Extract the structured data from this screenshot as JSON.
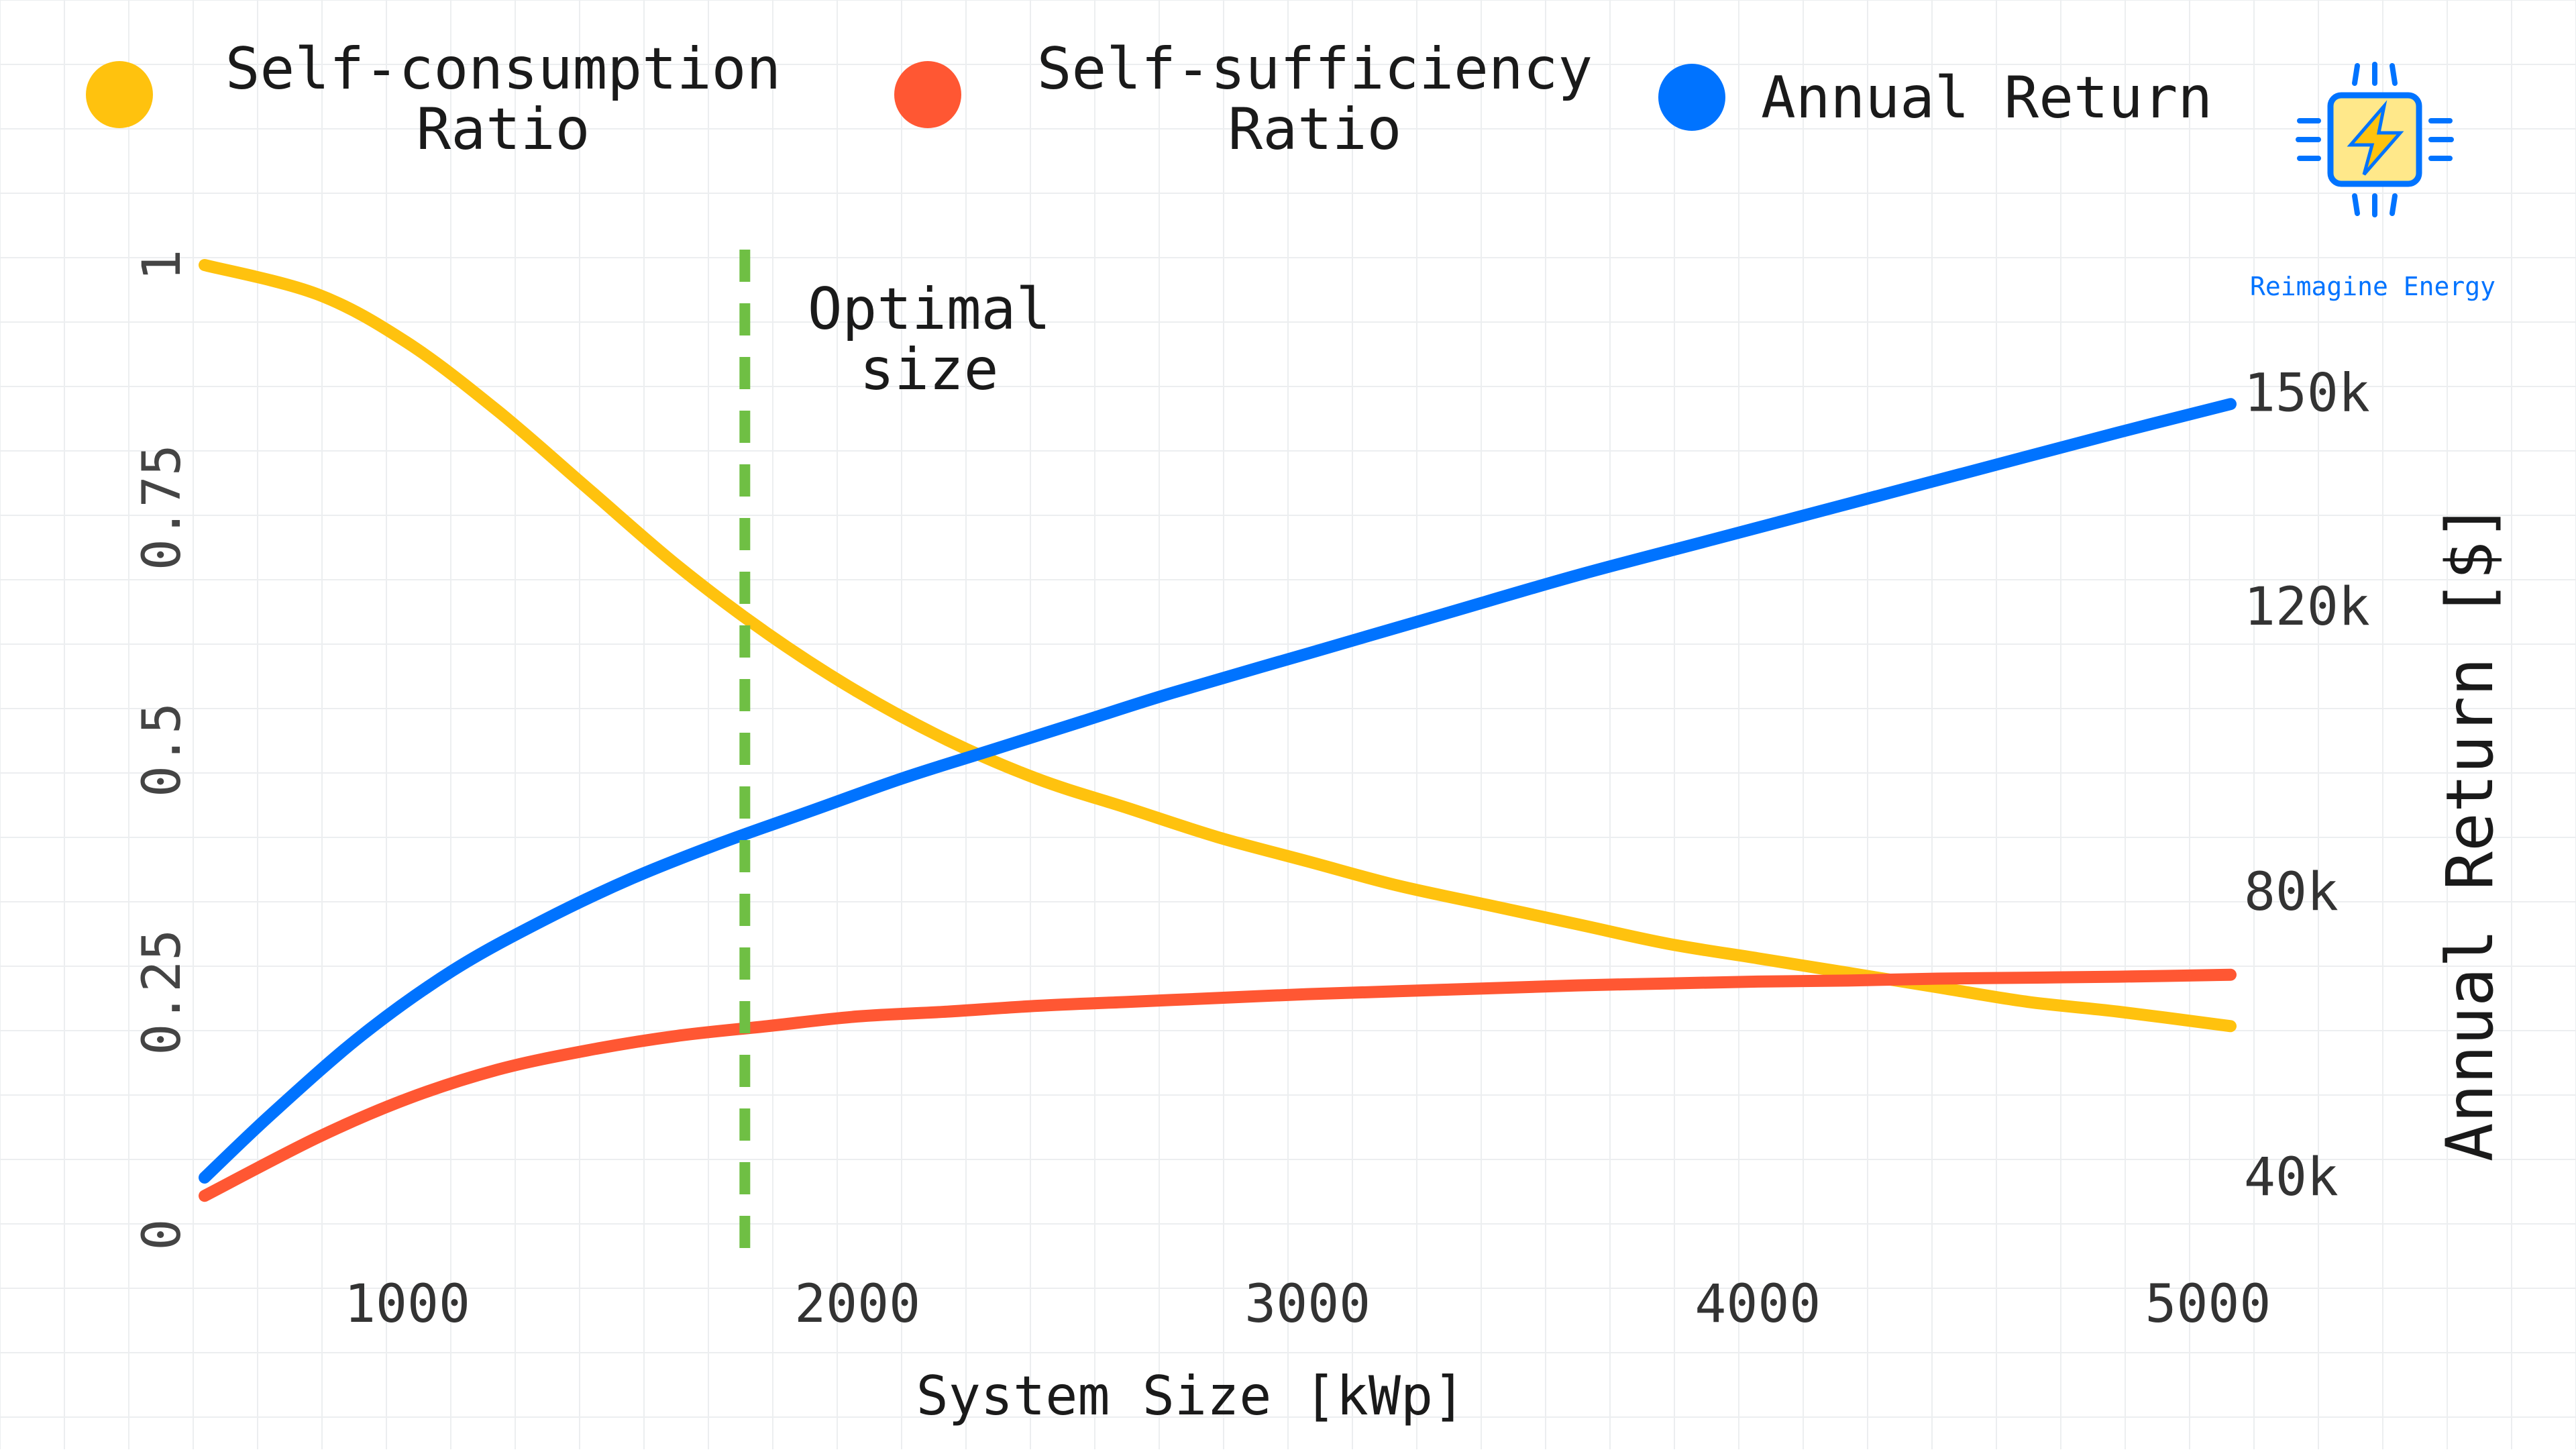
{
  "chart_data": {
    "type": "line",
    "title": "",
    "xlabel": "System Size [kWp]",
    "ylabel_left": "",
    "ylabel_right": "Annual Return [$]",
    "xlim": [
      550,
      5050
    ],
    "ylim_left": [
      0,
      1
    ],
    "ylim_right": [
      32000,
      168000
    ],
    "x_ticks": [
      1000,
      2000,
      3000,
      4000,
      5000
    ],
    "x_tick_labels": [
      "1000",
      "2000",
      "3000",
      "4000",
      "5000"
    ],
    "y_left_ticks": [
      0,
      0.25,
      0.5,
      0.75,
      1
    ],
    "y_left_tick_labels": [
      "0",
      "0.25",
      "0.5",
      "0.75",
      "1"
    ],
    "y_right_ticks": [
      40000,
      80000,
      120000,
      150000
    ],
    "y_right_tick_labels": [
      "40k",
      "80k",
      "120k",
      "150k"
    ],
    "grid": true,
    "legend_position": "top",
    "series": [
      {
        "name": "Self-consumption Ratio",
        "axis": "left",
        "color": "#FFC20E",
        "x": [
          550,
          800,
          1000,
          1200,
          1400,
          1600,
          1800,
          2000,
          2200,
          2400,
          2600,
          2800,
          3000,
          3200,
          3400,
          3600,
          3800,
          4000,
          4200,
          4400,
          4600,
          4800,
          5050
        ],
        "y": [
          1.0,
          0.97,
          0.92,
          0.85,
          0.77,
          0.69,
          0.62,
          0.56,
          0.51,
          0.47,
          0.44,
          0.41,
          0.385,
          0.36,
          0.34,
          0.32,
          0.3,
          0.285,
          0.27,
          0.255,
          0.24,
          0.23,
          0.215
        ]
      },
      {
        "name": "Self-sufficiency Ratio",
        "axis": "left",
        "color": "#FF5733",
        "x": [
          550,
          800,
          1000,
          1200,
          1400,
          1600,
          1800,
          2000,
          2200,
          2400,
          2600,
          2800,
          3000,
          3200,
          3400,
          3600,
          3800,
          4000,
          4200,
          4400,
          4600,
          4800,
          5050
        ],
        "y": [
          0.04,
          0.1,
          0.14,
          0.17,
          0.19,
          0.205,
          0.215,
          0.225,
          0.23,
          0.236,
          0.24,
          0.244,
          0.248,
          0.251,
          0.254,
          0.257,
          0.259,
          0.261,
          0.262,
          0.264,
          0.265,
          0.266,
          0.268
        ]
      },
      {
        "name": "Annual Return",
        "axis": "right",
        "color": "#0073FF",
        "x": [
          550,
          700,
          900,
          1100,
          1300,
          1500,
          1700,
          1900,
          2100,
          2300,
          2500,
          2700,
          3000,
          3300,
          3600,
          3900,
          4200,
          4500,
          4800,
          5050
        ],
        "y": [
          40000,
          49000,
          60000,
          69000,
          76000,
          82000,
          87000,
          91500,
          96000,
          100000,
          104000,
          108000,
          113500,
          119000,
          124500,
          129500,
          134500,
          139500,
          144500,
          148500
        ]
      }
    ],
    "annotations": [
      {
        "type": "vline",
        "x": 1750,
        "color": "#6FBF44",
        "label": [
          "Optimal",
          "size"
        ]
      }
    ]
  },
  "logo": {
    "text": "Reimagine Energy",
    "icon": "lightning-chip-icon",
    "color": "#0073FF"
  }
}
